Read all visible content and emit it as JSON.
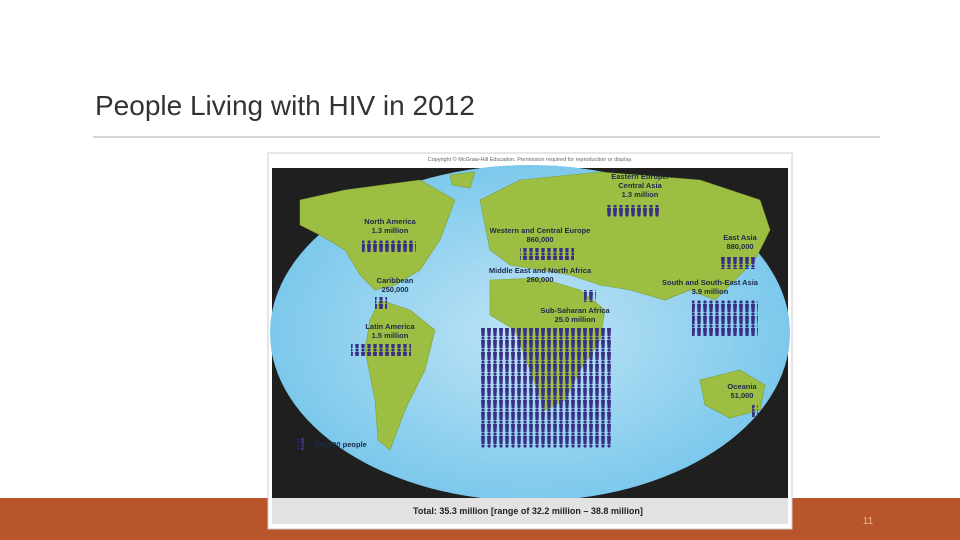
{
  "slide": {
    "title": "People Living with HIV in 2012",
    "page_number": "11"
  },
  "map": {
    "copyright": "Copyright © McGraw-Hill Education. Permission required for reproduction or display.",
    "regions": [
      {
        "name": [
          "North America"
        ],
        "value": "1.3 million"
      },
      {
        "name": [
          "Caribbean"
        ],
        "value": "250,000"
      },
      {
        "name": [
          "Latin America"
        ],
        "value": "1.5 million"
      },
      {
        "name": [
          "Western and Central Europe"
        ],
        "value": "860,000"
      },
      {
        "name": [
          "Middle East and North Africa"
        ],
        "value": "260,000"
      },
      {
        "name": [
          "Eastern Europe/",
          "Central Asia"
        ],
        "value": "1.3 million"
      },
      {
        "name": [
          "East Asia"
        ],
        "value": "880,000"
      },
      {
        "name": [
          "South and South-East Asia"
        ],
        "value": "3.9 million"
      },
      {
        "name": [
          "Sub-Saharan Africa"
        ],
        "value": "25.0 million"
      },
      {
        "name": [
          "Oceania"
        ],
        "value": "51,000"
      }
    ],
    "legend": "= 100,000 people",
    "total": "Total: 35.3 million [range of 32.2 million – 38.8 million]"
  }
}
